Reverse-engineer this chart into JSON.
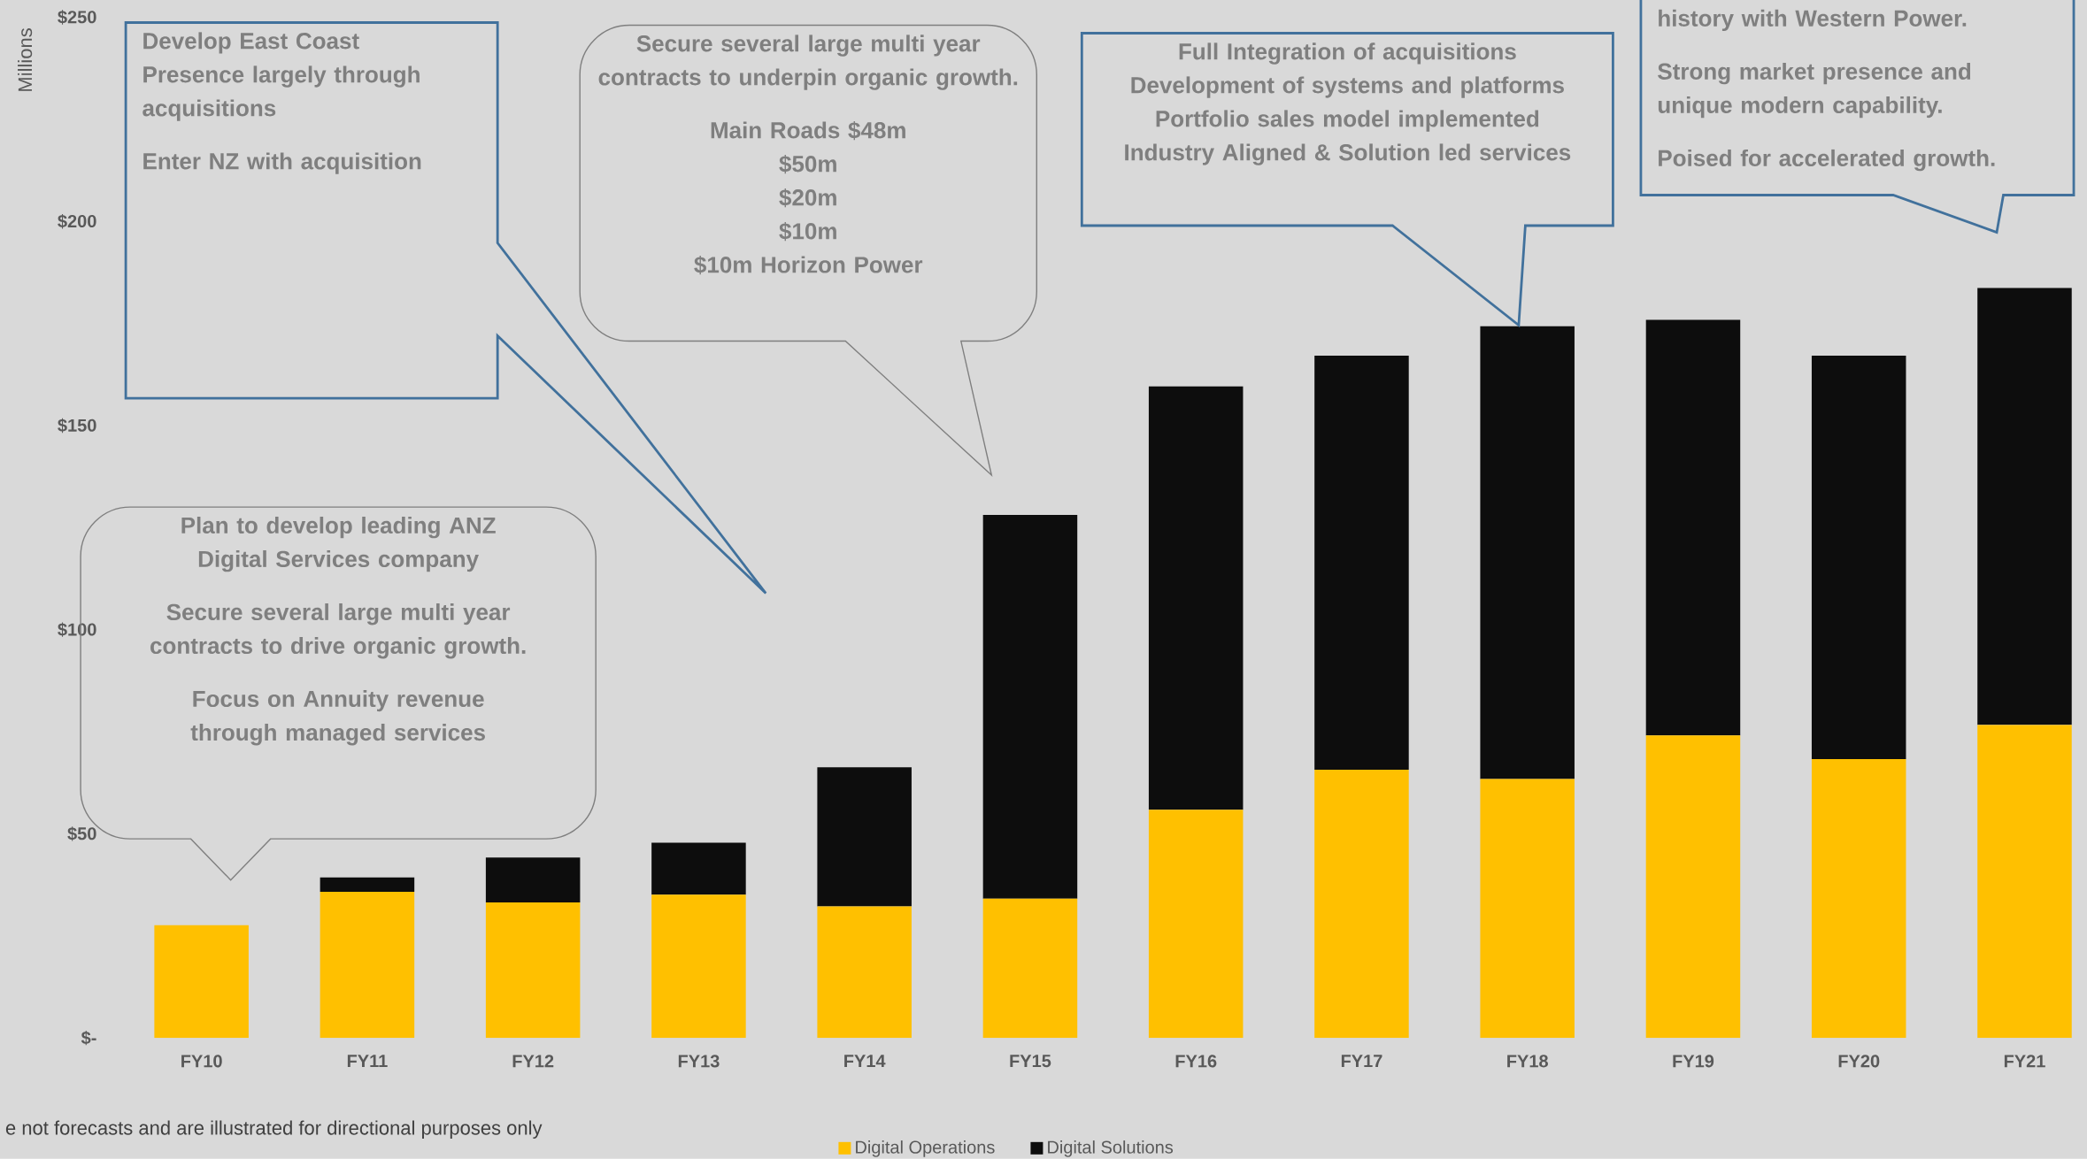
{
  "chart_data": {
    "type": "bar",
    "stacked": true,
    "categories": [
      "FY10",
      "FY11",
      "FY12",
      "FY13",
      "FY14",
      "FY15",
      "FY16",
      "FY17",
      "FY18",
      "FY19",
      "FY20",
      "FY21"
    ],
    "series": [
      {
        "name": "Digital Operations",
        "color": "#ffc000",
        "values": [
          27.6,
          35.8,
          33.2,
          35.1,
          32.2,
          34.1,
          55.9,
          65.7,
          63.4,
          74.1,
          68.3,
          76.7
        ]
      },
      {
        "name": "Digital Solutions",
        "color": "#0d0d0d",
        "values": [
          0,
          3.5,
          11.0,
          12.7,
          34.1,
          94.0,
          103.7,
          101.4,
          110.9,
          101.8,
          98.8,
          107.0
        ]
      }
    ],
    "ylabel": "Millions",
    "ylim": [
      0,
      250
    ],
    "yticks": [
      {
        "value": 0,
        "label": "$-"
      },
      {
        "value": 50,
        "label": "$50"
      },
      {
        "value": 100,
        "label": "$100"
      },
      {
        "value": 150,
        "label": "$150"
      },
      {
        "value": 200,
        "label": "$200"
      },
      {
        "value": 250,
        "label": "$250"
      }
    ],
    "legend": "bottom",
    "annotations": [
      "Develop East Coast Presence largely through acquisitions",
      "Enter NZ with acquisition",
      "Plan to develop leading ANZ Digital Services company",
      "Secure several large multi year contracts to drive organic growth.",
      "Focus on Annuity revenue through managed services",
      "Secure several large multi year contracts to underpin organic growth.",
      "Main Roads $48m",
      "$50m",
      "$20m",
      "$10m",
      "$10m Horizon Power",
      "Full Integration of acquisitions",
      "Development of systems and platforms",
      "Portfolio sales model implemented",
      "Industry Aligned & Solution led services",
      "history with Western Power.",
      "Strong market presence and unique modern capability.",
      "Poised for accelerated growth.",
      "e not forecasts and are illustrated for directional purposes only"
    ]
  }
}
